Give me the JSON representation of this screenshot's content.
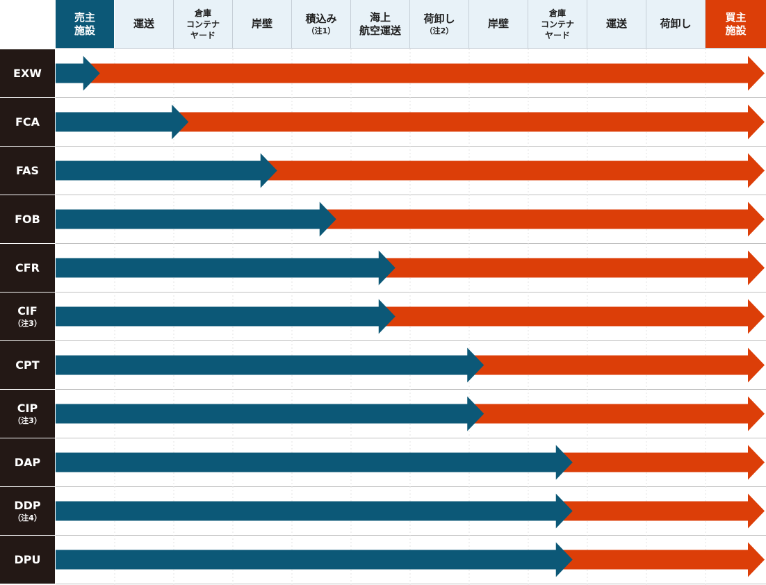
{
  "colors": {
    "seller": "#0c5877",
    "buyer": "#dc3e08",
    "label_bg": "#231815",
    "header_bg": "#e8f2f8"
  },
  "header": [
    {
      "lines": [
        "売主",
        "施設"
      ],
      "style": "seller"
    },
    {
      "lines": [
        "運送"
      ],
      "style": "normal"
    },
    {
      "lines": [
        "倉庫",
        "コンテナ",
        "ヤード"
      ],
      "style": "small"
    },
    {
      "lines": [
        "岸壁"
      ],
      "style": "normal"
    },
    {
      "lines": [
        "積込み",
        "（注1）"
      ],
      "style": "normal"
    },
    {
      "lines": [
        "海上",
        "航空運送"
      ],
      "style": "normal"
    },
    {
      "lines": [
        "荷卸し",
        "（注2）"
      ],
      "style": "normal"
    },
    {
      "lines": [
        "岸壁"
      ],
      "style": "normal"
    },
    {
      "lines": [
        "倉庫",
        "コンテナ",
        "ヤード"
      ],
      "style": "small"
    },
    {
      "lines": [
        "運送"
      ],
      "style": "normal"
    },
    {
      "lines": [
        "荷卸し"
      ],
      "style": "normal"
    },
    {
      "lines": [
        "買主",
        "施設"
      ],
      "style": "buyer"
    }
  ],
  "rows": [
    {
      "term": "EXW",
      "note": "",
      "transfer_at": 0.75
    },
    {
      "term": "FCA",
      "note": "",
      "transfer_at": 2.25
    },
    {
      "term": "FAS",
      "note": "",
      "transfer_at": 3.75
    },
    {
      "term": "FOB",
      "note": "",
      "transfer_at": 4.75
    },
    {
      "term": "CFR",
      "note": "",
      "transfer_at": 5.75
    },
    {
      "term": "CIF",
      "note": "（注3）",
      "transfer_at": 5.75
    },
    {
      "term": "CPT",
      "note": "",
      "transfer_at": 7.25
    },
    {
      "term": "CIP",
      "note": "（注3）",
      "transfer_at": 7.25
    },
    {
      "term": "DAP",
      "note": "",
      "transfer_at": 8.75
    },
    {
      "term": "DDP",
      "note": "（注4）",
      "transfer_at": 8.75
    },
    {
      "term": "DPU",
      "note": "",
      "transfer_at": 8.75
    }
  ]
}
